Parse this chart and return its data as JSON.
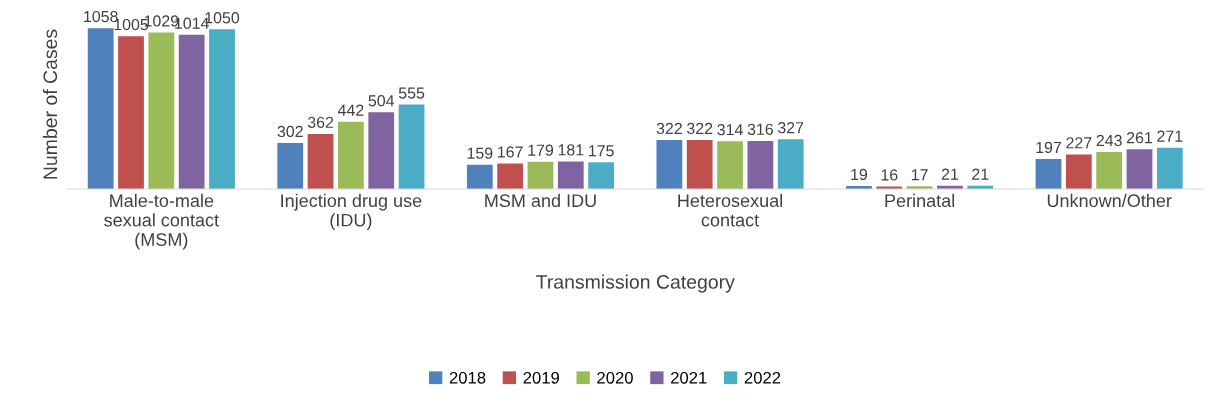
{
  "chart_data": {
    "type": "bar",
    "xlabel": "Transmission Category",
    "ylabel": "Number of Cases",
    "categories": [
      "Male-to-male\nsexual contact\n(MSM)",
      "Injection drug use\n(IDU)",
      "MSM and IDU",
      "Heterosexual\ncontact",
      "Perinatal",
      "Unknown/Other"
    ],
    "series": [
      {
        "name": "2018",
        "color": "#4f81bd",
        "values": [
          1058,
          302,
          159,
          322,
          19,
          197
        ]
      },
      {
        "name": "2019",
        "color": "#c0504d",
        "values": [
          1005,
          362,
          167,
          322,
          16,
          227
        ]
      },
      {
        "name": "2020",
        "color": "#9bbb59",
        "values": [
          1029,
          442,
          179,
          314,
          17,
          243
        ]
      },
      {
        "name": "2021",
        "color": "#8064a2",
        "values": [
          1014,
          504,
          181,
          316,
          21,
          261
        ]
      },
      {
        "name": "2022",
        "color": "#4bacc6",
        "values": [
          1050,
          555,
          175,
          327,
          21,
          271
        ]
      }
    ],
    "data_labels": true,
    "legend": "bottom",
    "tick_labels": "x",
    "grid": false
  }
}
